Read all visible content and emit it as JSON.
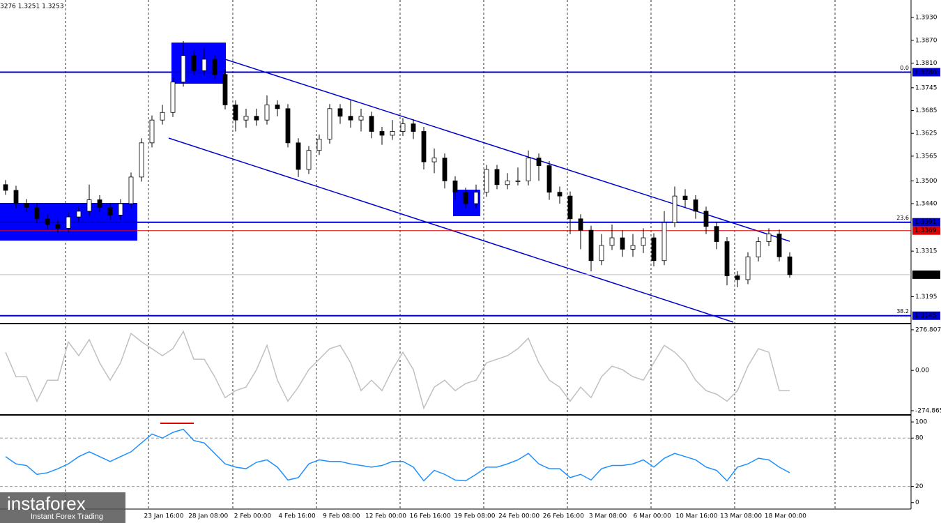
{
  "header": "3276 1.3251 1.3253",
  "watermark": {
    "brand": "instaforex",
    "tagline": "Instant Forex Trading"
  },
  "x_labels": [
    "23 Jan 16:00",
    "28 Jan 08:00",
    "2 Feb 00:00",
    "4 Feb 16:00",
    "9 Feb 08:00",
    "12 Feb 00:00",
    "16 Feb 16:00",
    "19 Feb 08:00",
    "24 Feb 00:00",
    "26 Feb 16:00",
    "3 Mar 08:00",
    "6 Mar 00:00",
    "10 Mar 16:00",
    "13 Mar 08:00",
    "18 Mar 00:00"
  ],
  "chart_data": [
    {
      "type": "candlestick",
      "ylim": [
        1.3128,
        1.3976
      ],
      "yticks": [
        {
          "value": 1.393,
          "label": "1.3930"
        },
        {
          "value": 1.387,
          "label": "1.3870"
        },
        {
          "value": 1.381,
          "label": "1.3810"
        },
        1.3745,
        1.3685,
        1.3625,
        1.3565,
        {
          "value": 1.35,
          "label": "1.3500"
        },
        {
          "value": 1.344,
          "label": "1.3440"
        },
        1.3315,
        1.3195
      ],
      "up_color": "#ffffff",
      "down_color": "#000000",
      "levels": [
        {
          "value": 1.3786,
          "color": "#0000cd",
          "box": "#0000cd",
          "fib": "0.0"
        },
        {
          "value": 1.3391,
          "color": "#0000cd",
          "box": "#0000cd",
          "fib": "23.6"
        },
        {
          "value": 1.3369,
          "color": "#e00000",
          "box": "#e00000"
        },
        {
          "value": 1.3253,
          "color": "#c0c0c0",
          "box": "#000000"
        },
        {
          "value": 1.3145,
          "color": "#0000cd",
          "box": "#0000cd",
          "fib": "38.2"
        }
      ],
      "candles": [
        [
          1.349,
          1.3502,
          1.3463,
          1.3475
        ],
        [
          1.3475,
          1.3487,
          1.3428,
          1.344
        ],
        [
          1.344,
          1.3452,
          1.3418,
          1.343
        ],
        [
          1.343,
          1.3442,
          1.3388,
          1.34
        ],
        [
          1.34,
          1.3412,
          1.3373,
          1.3385
        ],
        [
          1.3385,
          1.3397,
          1.3363,
          1.3375
        ],
        [
          1.3375,
          1.3417,
          1.3363,
          1.3405
        ],
        [
          1.3405,
          1.3432,
          1.3393,
          1.342
        ],
        [
          1.342,
          1.349,
          1.3408,
          1.345
        ],
        [
          1.345,
          1.3462,
          1.3418,
          1.343
        ],
        [
          1.343,
          1.3442,
          1.3398,
          1.341
        ],
        [
          1.341,
          1.3452,
          1.3398,
          1.344
        ],
        [
          1.344,
          1.3522,
          1.3428,
          1.351
        ],
        [
          1.351,
          1.3612,
          1.3498,
          1.36
        ],
        [
          1.36,
          1.3672,
          1.3588,
          1.366
        ],
        [
          1.366,
          1.37,
          1.3648,
          1.368
        ],
        [
          1.368,
          1.3772,
          1.3668,
          1.376
        ],
        [
          1.376,
          1.3868,
          1.3748,
          1.383
        ],
        [
          1.383,
          1.3842,
          1.3778,
          1.379
        ],
        [
          1.379,
          1.385,
          1.3778,
          1.382
        ],
        [
          1.382,
          1.3832,
          1.3768,
          1.378
        ],
        [
          1.378,
          1.3792,
          1.3688,
          1.37
        ],
        [
          1.37,
          1.3712,
          1.363,
          1.366
        ],
        [
          1.366,
          1.369,
          1.364,
          1.367
        ],
        [
          1.367,
          1.369,
          1.3645,
          1.366
        ],
        [
          1.366,
          1.3725,
          1.3648,
          1.37
        ],
        [
          1.37,
          1.3712,
          1.367,
          1.369
        ],
        [
          1.369,
          1.3702,
          1.3588,
          1.36
        ],
        [
          1.36,
          1.3612,
          1.351,
          1.353
        ],
        [
          1.353,
          1.3592,
          1.3518,
          1.358
        ],
        [
          1.358,
          1.3622,
          1.3568,
          1.361
        ],
        [
          1.361,
          1.3702,
          1.3598,
          1.369
        ],
        [
          1.369,
          1.3702,
          1.365,
          1.367
        ],
        [
          1.367,
          1.3712,
          1.364,
          1.366
        ],
        [
          1.366,
          1.369,
          1.363,
          1.367
        ],
        [
          1.367,
          1.3682,
          1.3612,
          1.363
        ],
        [
          1.363,
          1.3642,
          1.3595,
          1.362
        ],
        [
          1.362,
          1.366,
          1.3608,
          1.363
        ],
        [
          1.363,
          1.3665,
          1.3618,
          1.365
        ],
        [
          1.365,
          1.3662,
          1.361,
          1.363
        ],
        [
          1.363,
          1.3642,
          1.353,
          1.355
        ],
        [
          1.355,
          1.3585,
          1.352,
          1.356
        ],
        [
          1.356,
          1.3572,
          1.348,
          1.35
        ],
        [
          1.35,
          1.3512,
          1.345,
          1.347
        ],
        [
          1.347,
          1.3482,
          1.3428,
          1.344
        ],
        [
          1.344,
          1.349,
          1.3428,
          1.347
        ],
        [
          1.347,
          1.3542,
          1.3458,
          1.353
        ],
        [
          1.353,
          1.3542,
          1.3478,
          1.349
        ],
        [
          1.349,
          1.352,
          1.3478,
          1.35
        ],
        [
          1.35,
          1.3535,
          1.3488,
          1.35
        ],
        [
          1.35,
          1.358,
          1.3488,
          1.356
        ],
        [
          1.356,
          1.3572,
          1.35,
          1.354
        ],
        [
          1.354,
          1.3552,
          1.345,
          1.347
        ],
        [
          1.347,
          1.3485,
          1.344,
          1.346
        ],
        [
          1.346,
          1.3472,
          1.336,
          1.34
        ],
        [
          1.34,
          1.3412,
          1.332,
          1.337
        ],
        [
          1.337,
          1.3382,
          1.3262,
          1.329
        ],
        [
          1.329,
          1.336,
          1.3278,
          1.333
        ],
        [
          1.333,
          1.3385,
          1.3318,
          1.335
        ],
        [
          1.335,
          1.337,
          1.33,
          1.332
        ],
        [
          1.332,
          1.336,
          1.33,
          1.333
        ],
        [
          1.333,
          1.3375,
          1.331,
          1.335
        ],
        [
          1.335,
          1.3362,
          1.3275,
          1.329
        ],
        [
          1.329,
          1.342,
          1.3278,
          1.339
        ],
        [
          1.339,
          1.3485,
          1.3378,
          1.346
        ],
        [
          1.346,
          1.3478,
          1.343,
          1.345
        ],
        [
          1.345,
          1.3462,
          1.34,
          1.342
        ],
        [
          1.342,
          1.3432,
          1.336,
          1.338
        ],
        [
          1.338,
          1.3392,
          1.332,
          1.334
        ],
        [
          1.334,
          1.3352,
          1.3225,
          1.325
        ],
        [
          1.325,
          1.3262,
          1.322,
          1.324
        ],
        [
          1.324,
          1.3312,
          1.3228,
          1.33
        ],
        [
          1.33,
          1.3352,
          1.3288,
          1.334
        ],
        [
          1.334,
          1.3375,
          1.3328,
          1.336
        ],
        [
          1.336,
          1.3372,
          1.3288,
          1.33
        ],
        [
          1.33,
          1.3312,
          1.3245,
          1.3253
        ]
      ]
    },
    {
      "type": "line",
      "color": "#c0c0c0",
      "ylim": [
        -294,
        305
      ],
      "yticks": [
        276.8074,
        {
          "value": 0,
          "label": "0.00"
        },
        {
          "value": -274.865,
          "label": "-274.8650"
        }
      ],
      "values": [
        124,
        -43,
        -43,
        -210,
        -67,
        -67,
        195,
        100,
        210,
        52,
        -67,
        52,
        252,
        195,
        148,
        100,
        148,
        266,
        76,
        76,
        -43,
        -186,
        -138,
        -114,
        5,
        171,
        -67,
        -210,
        -114,
        5,
        76,
        148,
        171,
        52,
        -138,
        -67,
        -138,
        5,
        124,
        5,
        -257,
        -114,
        -67,
        -138,
        -90,
        -67,
        52,
        76,
        100,
        148,
        219,
        52,
        -67,
        -114,
        -210,
        -114,
        -186,
        -43,
        29,
        5,
        -43,
        -67,
        52,
        171,
        124,
        52,
        -67,
        -138,
        -162,
        -210,
        -138,
        29,
        148,
        124,
        -138,
        -138
      ]
    },
    {
      "type": "line",
      "color": "#1e90ff",
      "ylim": [
        -8,
        107
      ],
      "yticks": [
        100,
        80,
        20,
        0
      ],
      "levels": [
        80,
        20
      ],
      "values": [
        57,
        48,
        46,
        35,
        37,
        42,
        48,
        57,
        63,
        57,
        51,
        57,
        63,
        74,
        85,
        80,
        87,
        91,
        77,
        74,
        61,
        48,
        44,
        42,
        50,
        53,
        44,
        28,
        31,
        48,
        53,
        51,
        51,
        48,
        46,
        44,
        46,
        51,
        51,
        44,
        27,
        40,
        35,
        28,
        27,
        35,
        44,
        44,
        48,
        53,
        61,
        48,
        42,
        42,
        31,
        35,
        28,
        42,
        46,
        46,
        48,
        53,
        44,
        55,
        61,
        57,
        53,
        44,
        40,
        27,
        44,
        48,
        55,
        53,
        44,
        37
      ]
    }
  ]
}
